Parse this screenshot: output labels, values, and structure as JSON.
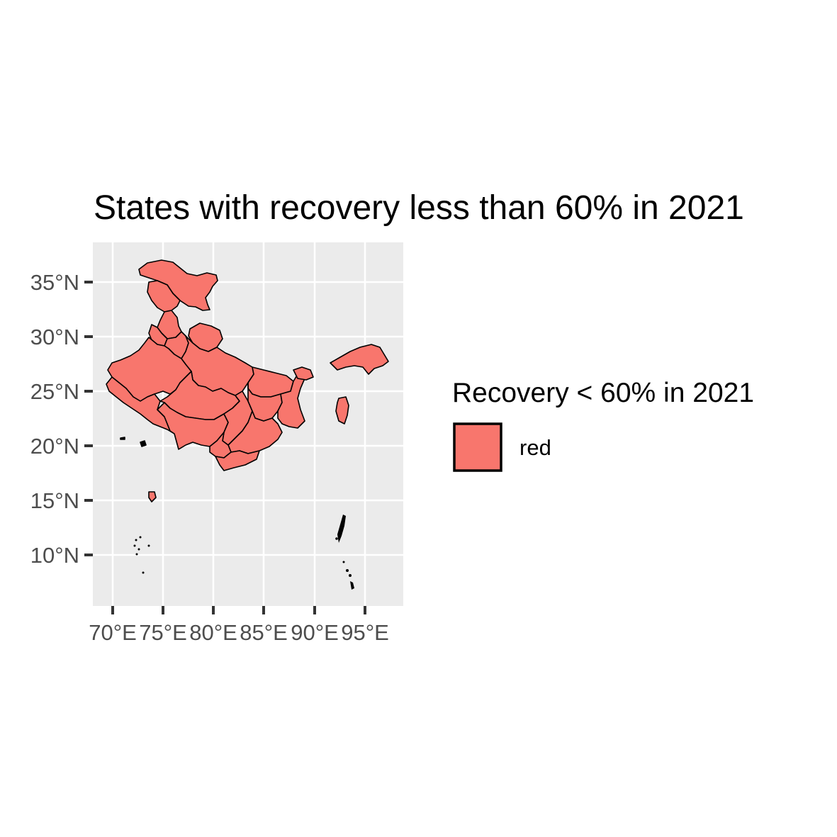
{
  "title": "States with recovery less than 60% in 2021",
  "colors": {
    "fill": "#F8766D",
    "panel_background": "#EBEBEB",
    "gridline": "#FFFFFF",
    "stroke": "#000000"
  },
  "axes": {
    "x_ticks": [
      "70°E",
      "75°E",
      "80°E",
      "85°E",
      "90°E",
      "95°E"
    ],
    "y_ticks": [
      "35°N",
      "30°N",
      "25°N",
      "20°N",
      "15°N",
      "10°N"
    ],
    "x_range_deg_e": [
      68.1,
      97.4
    ],
    "y_range_deg_n": [
      6.7,
      37.1
    ]
  },
  "legend": {
    "title": "Recovery < 60% in 2021",
    "items": [
      {
        "label": "red",
        "color": "#F8766D"
      }
    ]
  },
  "map": {
    "region": "India",
    "projection": "lon-lat",
    "highlighted_value": "red",
    "highlighted_states": "all mainland states shown filled"
  }
}
